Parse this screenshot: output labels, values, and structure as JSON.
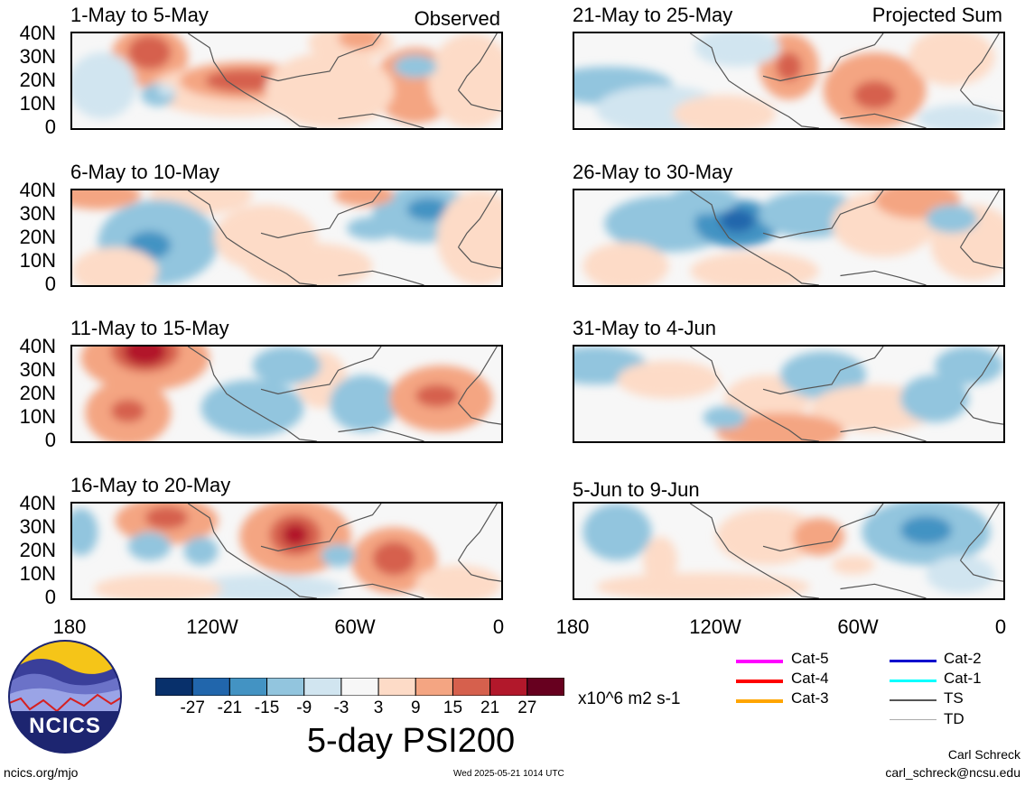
{
  "panels": [
    {
      "title": "1-May to 5-May",
      "tag": "Observed"
    },
    {
      "title": "6-May to 10-May",
      "tag": ""
    },
    {
      "title": "11-May to 15-May",
      "tag": ""
    },
    {
      "title": "16-May to 20-May",
      "tag": ""
    },
    {
      "title": "21-May to 25-May",
      "tag": "Projected Sum"
    },
    {
      "title": "26-May to 30-May",
      "tag": ""
    },
    {
      "title": "31-May to 4-Jun",
      "tag": ""
    },
    {
      "title": "5-Jun to 9-Jun",
      "tag": ""
    }
  ],
  "lat_labels": [
    "40N",
    "30N",
    "20N",
    "10N",
    "0"
  ],
  "lon_labels": [
    "180",
    "120W",
    "60W",
    "0"
  ],
  "colorbar": {
    "labels": [
      "-27",
      "-21",
      "-15",
      "-9",
      "-3",
      "3",
      "9",
      "15",
      "21",
      "27"
    ],
    "colors": [
      "#08306b",
      "#2166ac",
      "#4393c3",
      "#92c5de",
      "#d1e5f0",
      "#f7f7f7",
      "#fddbc7",
      "#f4a582",
      "#d6604d",
      "#b2182b",
      "#67001f"
    ],
    "units": "x10^6 m2 s-1",
    "title": "5-day PSI200"
  },
  "legend": [
    {
      "label": "Cat-5",
      "color": "#ff00ff"
    },
    {
      "label": "Cat-4",
      "color": "#ff0000"
    },
    {
      "label": "Cat-3",
      "color": "#ffa500"
    },
    {
      "label": "Cat-2",
      "color": "#0000cd"
    },
    {
      "label": "Cat-1",
      "color": "#00ffff"
    },
    {
      "label": "TS",
      "color": "#555555"
    },
    {
      "label": "TD",
      "color": "#aaaaaa"
    }
  ],
  "logo": {
    "text": "NCICS"
  },
  "footer": {
    "url": "ncics.org/mjo",
    "timestamp": "Wed 2025-05-21 1014 UTC",
    "author": "Carl Schreck",
    "email": "carl_schreck@ncsu.edu"
  }
}
